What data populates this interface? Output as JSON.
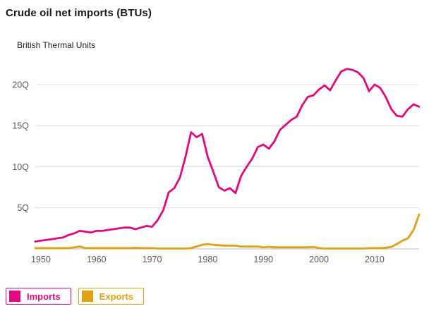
{
  "page": {
    "title": "Crude oil net imports (BTUs)",
    "y_axis_caption": "British Thermal Units"
  },
  "chart_data": {
    "type": "line",
    "title": "Crude oil net imports (BTUs)",
    "ylabel": "British Thermal Units",
    "xlabel": "",
    "grid": "horizontal",
    "legend_position": "bottom-left",
    "xlim": [
      1949,
      2018
    ],
    "ylim": [
      0,
      23
    ],
    "x_ticks": [
      1950,
      1960,
      1970,
      1980,
      1990,
      2000,
      2010
    ],
    "y_ticks": [
      {
        "value": 5,
        "label": "5Q"
      },
      {
        "value": 10,
        "label": "10Q"
      },
      {
        "value": 15,
        "label": "15Q"
      },
      {
        "value": 20,
        "label": "20Q"
      }
    ],
    "x": [
      1949,
      1950,
      1951,
      1952,
      1953,
      1954,
      1955,
      1956,
      1957,
      1958,
      1959,
      1960,
      1961,
      1962,
      1963,
      1964,
      1965,
      1966,
      1967,
      1968,
      1969,
      1970,
      1971,
      1972,
      1973,
      1974,
      1975,
      1976,
      1977,
      1978,
      1979,
      1980,
      1981,
      1982,
      1983,
      1984,
      1985,
      1986,
      1987,
      1988,
      1989,
      1990,
      1991,
      1992,
      1993,
      1994,
      1995,
      1996,
      1997,
      1998,
      1999,
      2000,
      2001,
      2002,
      2003,
      2004,
      2005,
      2006,
      2007,
      2008,
      2009,
      2010,
      2011,
      2012,
      2013,
      2014,
      2015,
      2016,
      2017,
      2018
    ],
    "series": [
      {
        "name": "Imports",
        "color": "#e4097e",
        "values": [
          0.9,
          1.0,
          1.1,
          1.2,
          1.3,
          1.4,
          1.7,
          1.9,
          2.2,
          2.1,
          2.0,
          2.2,
          2.2,
          2.3,
          2.4,
          2.5,
          2.6,
          2.6,
          2.4,
          2.6,
          2.8,
          2.7,
          3.5,
          4.7,
          6.9,
          7.4,
          8.7,
          11.2,
          14.2,
          13.6,
          14.0,
          11.2,
          9.4,
          7.5,
          7.1,
          7.4,
          6.8,
          8.9,
          10.0,
          11.0,
          12.4,
          12.7,
          12.2,
          13.1,
          14.5,
          15.1,
          15.7,
          16.1,
          17.5,
          18.5,
          18.7,
          19.4,
          19.9,
          19.3,
          20.5,
          21.6,
          21.9,
          21.8,
          21.5,
          20.8,
          19.2,
          20.0,
          19.6,
          18.5,
          17.0,
          16.2,
          16.1,
          17.0,
          17.6,
          17.3
        ]
      },
      {
        "name": "Exports",
        "color": "#e3a212",
        "values": [
          0.1,
          0.1,
          0.1,
          0.1,
          0.1,
          0.1,
          0.1,
          0.2,
          0.3,
          0.1,
          0.1,
          0.1,
          0.1,
          0.1,
          0.1,
          0.1,
          0.1,
          0.1,
          0.15,
          0.1,
          0.1,
          0.1,
          0.05,
          0.05,
          0.05,
          0.05,
          0.05,
          0.05,
          0.1,
          0.3,
          0.5,
          0.6,
          0.5,
          0.45,
          0.4,
          0.4,
          0.4,
          0.3,
          0.3,
          0.3,
          0.3,
          0.2,
          0.25,
          0.2,
          0.2,
          0.2,
          0.2,
          0.2,
          0.2,
          0.2,
          0.25,
          0.1,
          0.05,
          0.05,
          0.05,
          0.05,
          0.05,
          0.05,
          0.05,
          0.05,
          0.1,
          0.1,
          0.1,
          0.15,
          0.25,
          0.6,
          1.0,
          1.3,
          2.3,
          4.2
        ]
      }
    ],
    "colors": {
      "grid": "#dcdcdc",
      "axis": "#b9b9b9",
      "tick_text": "#5a5a5a",
      "background": "#ffffff"
    }
  },
  "legend": {
    "items": [
      {
        "label": "Imports",
        "color": "#e4097e"
      },
      {
        "label": "Exports",
        "color": "#e3a212"
      }
    ]
  }
}
